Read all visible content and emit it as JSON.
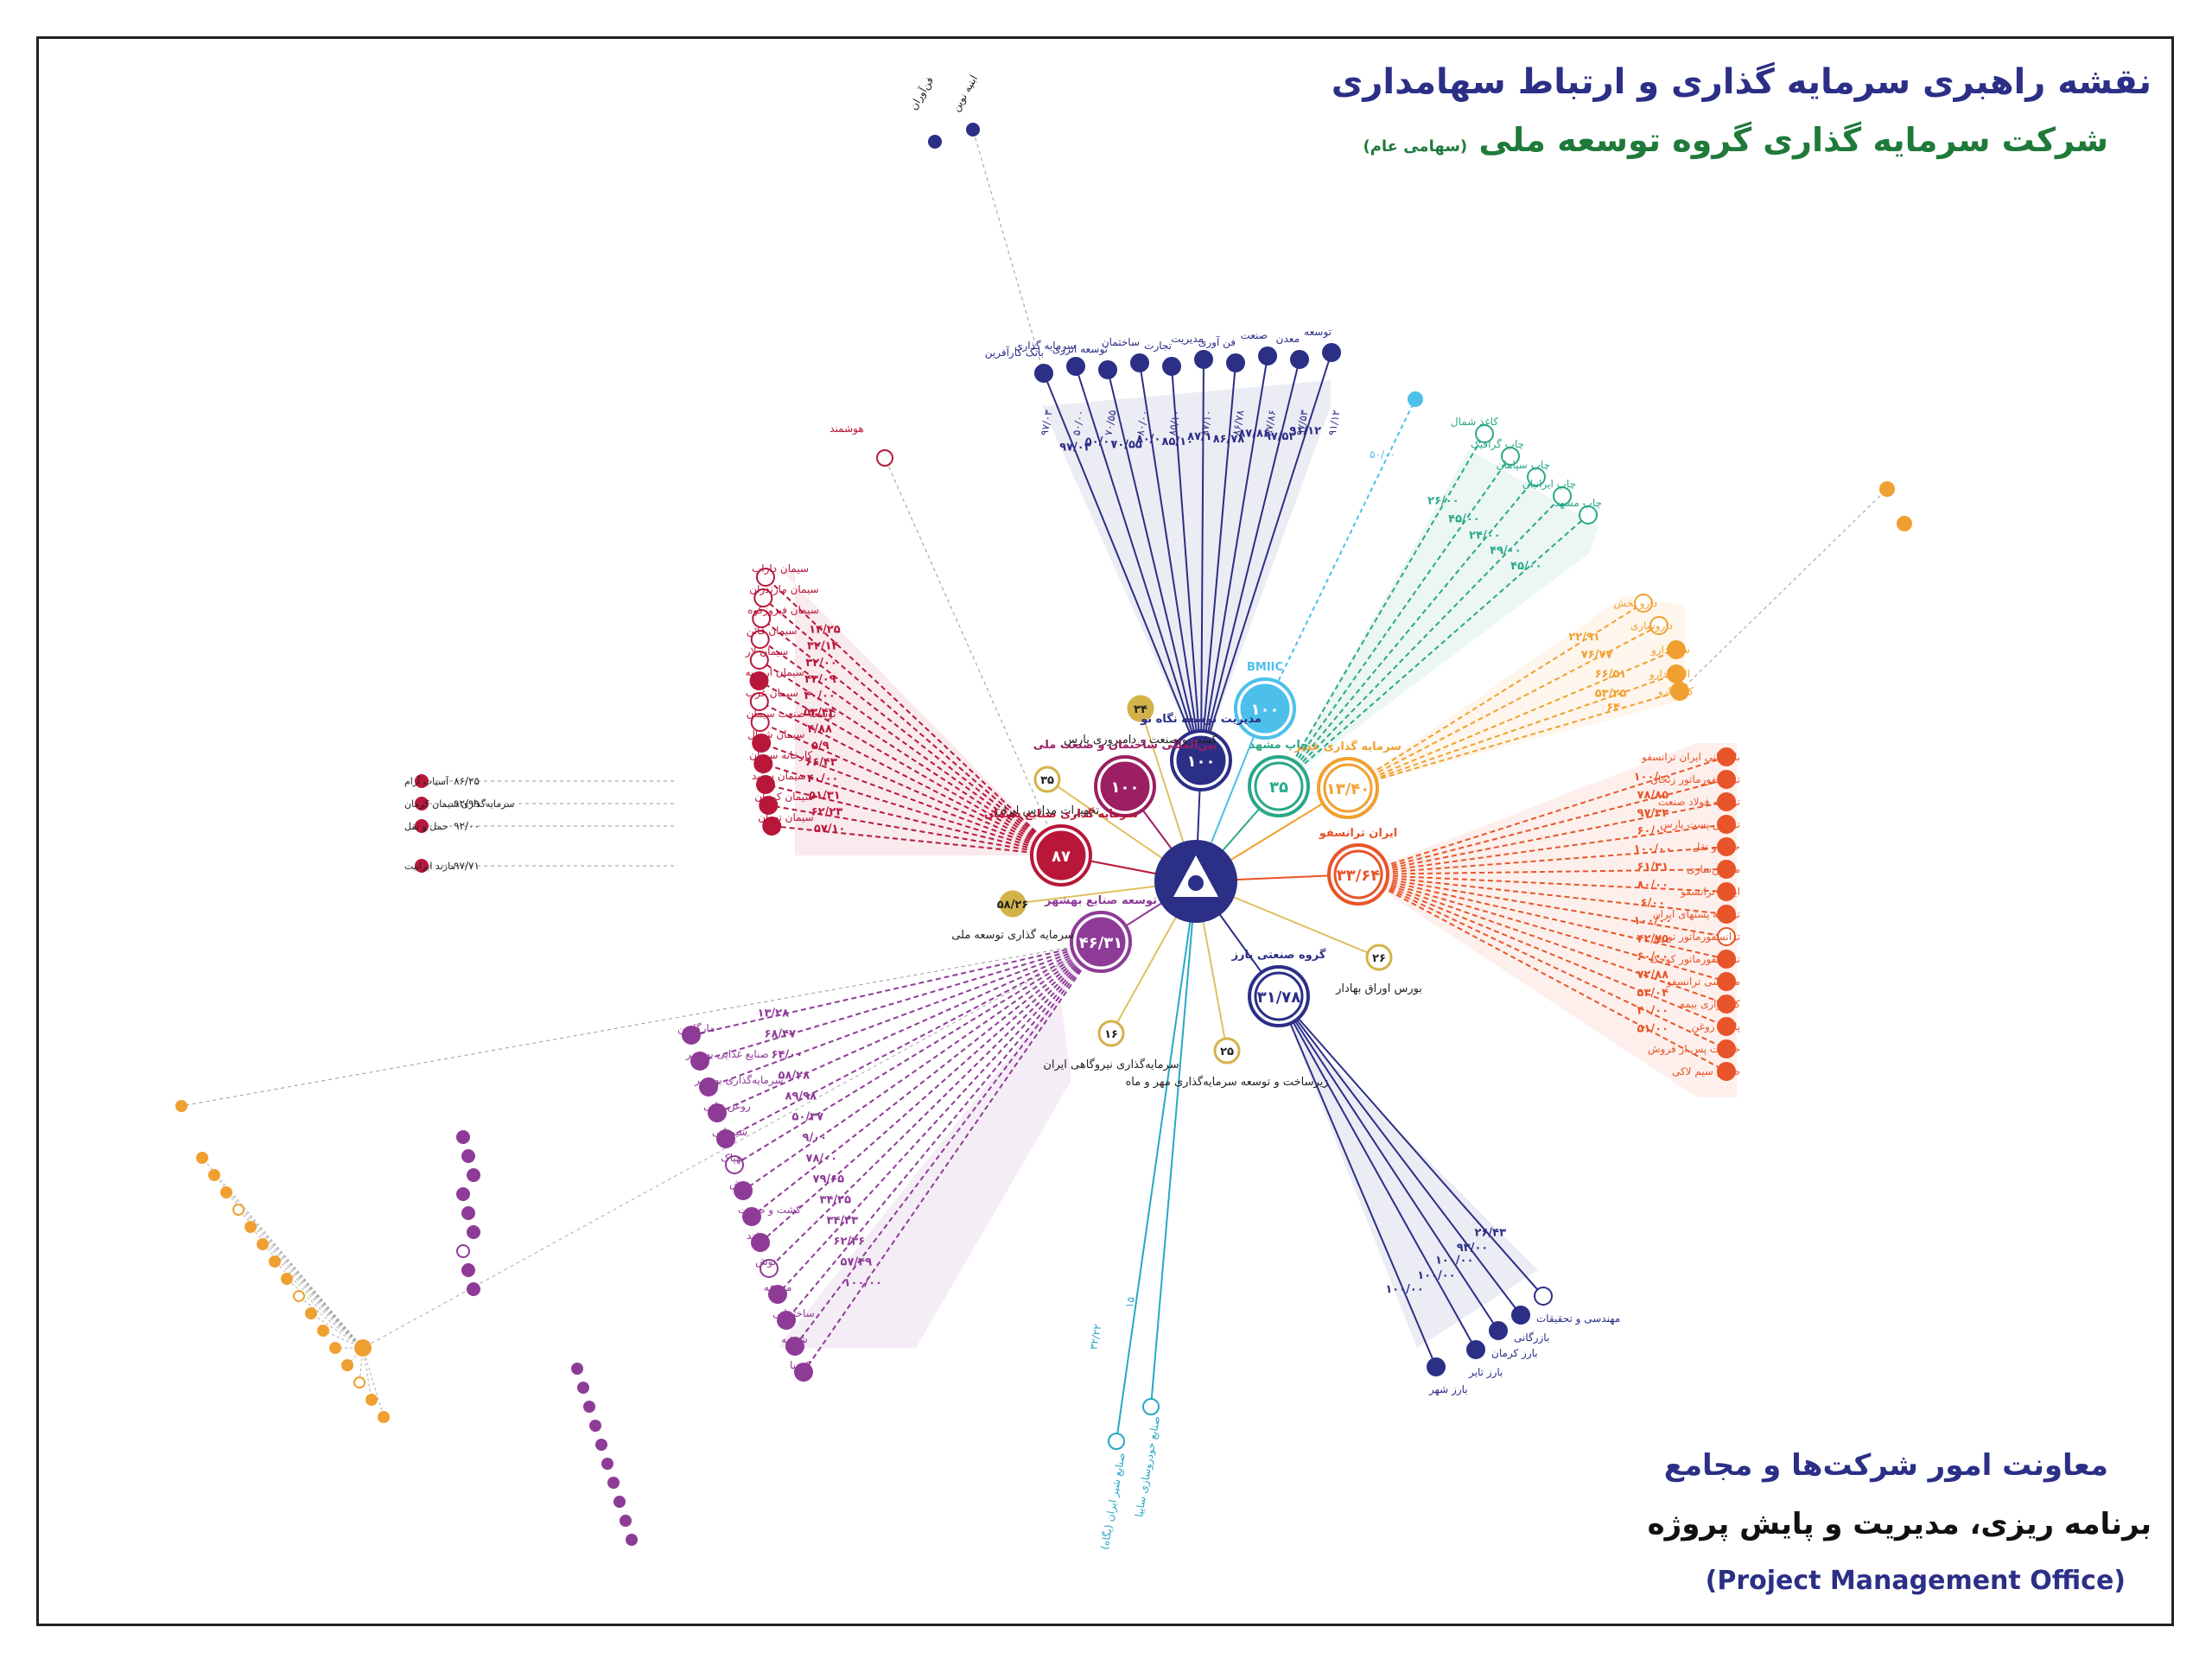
{
  "header": {
    "title": "نقشه راهبری سرمایه گذاری و ارتباط سهامداری",
    "subtitle_main": "شرکت سرمایه گذاری گروه توسعه ملی",
    "subtitle_small": "(سهامی عام)"
  },
  "footer": {
    "dept": "معاونت امور شرکت‌ها و مجامع",
    "unit": "برنامه ریزی، مدیریت و پایش پروژه",
    "pmo": "(Project Management Office)"
  },
  "colors": {
    "navy": "#2b2f86",
    "sky": "#4cc0ea",
    "teal": "#2aa888",
    "amber": "#f0a030",
    "orange": "#e8552a",
    "crimson": "#b8173a",
    "magenta": "#9b1f62",
    "purple": "#8e3b97",
    "gold": "#d4b24a",
    "cyan": "#2aa7c5"
  },
  "hubs": [
    {
      "key": "navy",
      "value": "۱۰۰",
      "label": "مدیریت توسعه نگاه نو"
    },
    {
      "key": "sky",
      "value": "۱۰۰",
      "label": "BMIIC"
    },
    {
      "key": "teal",
      "value": "۳۵",
      "label": "چاپ مشهد"
    },
    {
      "key": "amber",
      "value": "۱۳/۴۰",
      "label": "سرمایه گذاری غدیر"
    },
    {
      "key": "orange",
      "value": "۳۳/۶۴",
      "label": "ایران ترانسفو"
    },
    {
      "key": "navy2",
      "value": "۳۱/۷۸",
      "label": "گروه صنعتی بارز"
    },
    {
      "key": "purple",
      "value": "۴۶/۳۱",
      "label": "توسعه صنایع بهشهر"
    },
    {
      "key": "crimson",
      "value": "۸۷",
      "label": "سرمایه گذاری صنایع سیمان"
    },
    {
      "key": "magenta",
      "value": "۱۰۰",
      "label": "بین‌المللی ساختمان و صنعت ملی"
    }
  ],
  "small_nodes": [
    {
      "value": "۳۴",
      "label": "کشت و صنعت و دامپروری پارس"
    },
    {
      "value": "۳۵",
      "label": "تجهیزات مدارس ایران"
    },
    {
      "value": "۵۸/۲۶",
      "label": "سرمایه گذاری توسعه ملی"
    },
    {
      "value": "۱۶",
      "label": "سرمایه‌گذاری نیروگاهی ایران"
    },
    {
      "value": "۲۵",
      "label": "زیرساخت و توسعه سرمایه‌گذاری مهر و ماه"
    },
    {
      "value": "۲۶",
      "label": "بورس اوراق بهادار"
    }
  ],
  "long_leaves": [
    {
      "value": "۳۲/۲۲",
      "label": "صنایع شیر ایران (پگاه)"
    },
    {
      "value": "۱۵",
      "label": "صنایع خودروسازی سایپا"
    }
  ],
  "outliers": {
    "top": [
      "فن‌آوران",
      "ابنیه نوین"
    ],
    "red_top": "هوشمند",
    "sky": "۵۰/۰۰"
  },
  "navy_top": {
    "values": [
      "۹۷/۰۳",
      "۵۰/۰۰",
      "۷۰/۵۵",
      "۸۰/۰۰",
      "۸۵/۱۰",
      "۸۷/۱۰",
      "۸۶/۷۸",
      "۸۷/۸۶",
      "۹۷/۵۳",
      "۹۱/۱۲"
    ],
    "labels": [
      "بانک کارآفرین",
      "سرمایه گذاری",
      "توسعه انرژی",
      "ساختمان",
      "تجارت",
      "مدیریت",
      "فن آوری",
      "صنعت",
      "معدن",
      "توسعه"
    ]
  },
  "teal_cluster": {
    "values": [
      "۲۶/۰۰",
      "۴۵/۰۰",
      "۲۴/۰۰",
      "۴۹/۰۰",
      "۴۵/۰۰"
    ],
    "labels": [
      "کاغذ شمال",
      "چاپ گرافیک",
      "چاپ سپاهان",
      "چاپ ایرانیان",
      "چاپ مشهد"
    ]
  },
  "amber_cluster": {
    "values": [
      "۲۲/۹۱",
      "۷۶/۷۷",
      "۶۶/۵۱",
      "۵۳/۲۵",
      "۶۴"
    ],
    "labels": [
      "دارو پخش",
      "داروسازی",
      "سینا دارو",
      "البرز دارو",
      "کیمیدارو"
    ]
  },
  "orange_cluster": {
    "values": [
      "۱۰۰/۰۰",
      "۷۸/۸۵",
      "۹۷/۳۳",
      "۶۰/۰۰",
      "۱۰۰/۰۰",
      "۶۱/۳۱",
      "۸۰/۰۰",
      "۶/۰۰",
      "۱۰۰/۰۰",
      "۴۲/۷۵",
      "۶۰/۰۰",
      "۷۲/۸۸",
      "۵۳/۰۴",
      "۴۰/۰۰",
      "۵۱/۰۰"
    ],
    "labels": [
      "بازرگانی ایران ترانسفو",
      "ترانسفورماتور زنجان",
      "توسعه فولاد صنعت",
      "ترانس پست پارس",
      "حمل و نقل",
      "ماشین‌سازی",
      "ایران ترانسفو",
      "توسعه پستهای ایران",
      "ترانسفورماتور توزیع",
      "ترانسفورماتور کوچک",
      "مهندسی ترانسفو",
      "کارگزاری بیمه",
      "پایش روغن",
      "خدمات پس از فروش",
      "صنایع سیم لاکی"
    ]
  },
  "crimson_cluster": {
    "values": [
      "۱۴/۲۵",
      "۳۲/۱۴",
      "۳۲/۰۰",
      "۴۳/۰۹",
      "۴۰/۰۰",
      "۵۳/۴۴",
      "۴/۸۸",
      "۵/۹",
      "۶۶/۴۳",
      "۴۰/۰۰",
      "۵۱/۳۱",
      "۶۲/۲۳",
      "۵۷/۱۰"
    ],
    "labels": [
      "سیمان داراب",
      "سیمان مازندران",
      "سیمان فیروزکوه",
      "سیمان قائن",
      "سیمان لار",
      "سیمان ارومیه",
      "سیمان غرب",
      "توسعه صنعت سیمان",
      "سیمان شمال",
      "کارخانه سیمان",
      "سیمان سفید",
      "سیمان کرمان",
      "سیمان تهران"
    ],
    "left_labels": [
      "آسیاب آرام",
      "سرمایه‌گذاری سیمان کرمان",
      "حمل و نقل",
      "مازند ایرانیت"
    ],
    "left_values": [
      "۸۶/۲۵",
      "۹۲/۹۹",
      "۹۲/۰۰",
      "۹۷/۷۱"
    ]
  },
  "purple_cluster": {
    "values": [
      "۱۳/۲۸",
      "۶۸/۴۷",
      "۶۴/۰۰",
      "۵۸/۲۸",
      "۸۹/۹۸",
      "۵۰/۳۷",
      "۹/۰۰",
      "۷۸/۰۰",
      "۷۹/۶۵",
      "۳۴/۲۵",
      "۳۴/۲۳",
      "۶۲/۳۶",
      "۵۷/۴۹",
      "۱۰۰/۰۰"
    ],
    "labels": [
      "مارگارین",
      "صنایع غذایی بهشهر",
      "سرمایه‌گذاری بهشهر",
      "روغن نباتی",
      "شیمیایی",
      "بهپاک",
      "پخش",
      "کشت و صنعت",
      "قند",
      "نوش",
      "مزرعه",
      "ساختمانی",
      "شیشه",
      "کیمیا"
    ]
  },
  "navy_bottom": {
    "values": [
      "۲۶/۴۳",
      "۹۲/۰۰",
      "۱۰۰/۰۰",
      "۱۰۰/۰۰",
      "۱۰۰/۰۰"
    ],
    "labels": [
      "مهندسی و تحقیقات",
      "بازرگانی",
      "بارز کرمان",
      "بارز تایر",
      "بارز شهر"
    ]
  }
}
